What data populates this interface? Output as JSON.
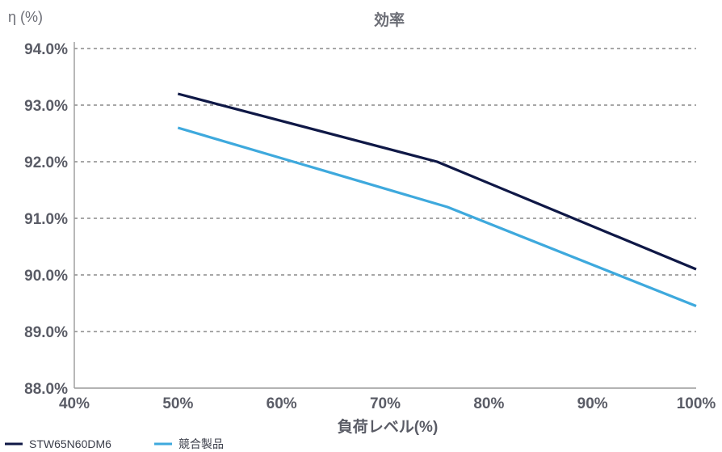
{
  "chart_data": {
    "type": "line",
    "title": "効率",
    "ylabel": "η (%)",
    "xlabel": "負荷レベル(%)",
    "xlim": [
      40,
      100
    ],
    "ylim": [
      88,
      94
    ],
    "x_ticks": [
      "40%",
      "50%",
      "60%",
      "70%",
      "80%",
      "90%",
      "100%"
    ],
    "y_ticks": [
      "94.0%",
      "93.0%",
      "92.0%",
      "91.0%",
      "90.0%",
      "89.0%",
      "88.0%"
    ],
    "grid": "horizontal-dashed",
    "legend_position": "bottom-left",
    "series": [
      {
        "name": "STW65N60DM6",
        "color": "#0f1846",
        "x": [
          50,
          75,
          100
        ],
        "y": [
          93.2,
          92.0,
          90.1
        ]
      },
      {
        "name": "競合製品",
        "color": "#3ea9dd",
        "x": [
          50,
          76,
          100
        ],
        "y": [
          92.6,
          91.2,
          89.45
        ]
      }
    ]
  }
}
